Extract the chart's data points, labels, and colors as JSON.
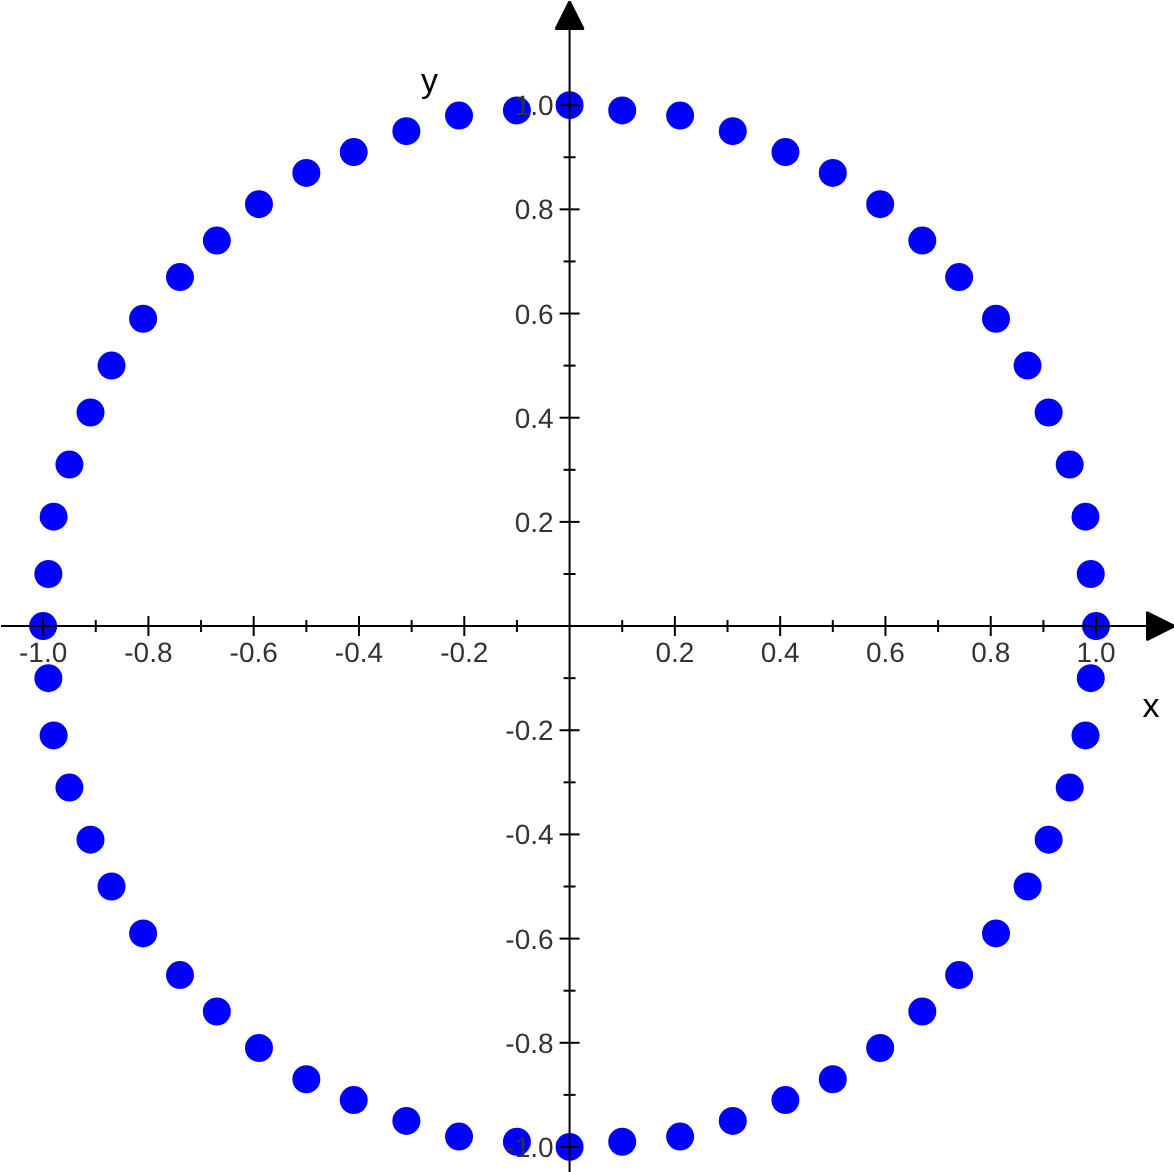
{
  "chart_data": {
    "type": "scatter",
    "xlabel": "x",
    "ylabel": "y",
    "marker": "circle",
    "grid": false,
    "xlim": [
      -1.08,
      1.15
    ],
    "ylim": [
      -1.05,
      1.2
    ],
    "xticks": [
      {
        "value": -1.0,
        "label": "-1.0"
      },
      {
        "value": -0.9,
        "label": null
      },
      {
        "value": -0.8,
        "label": "-0.8"
      },
      {
        "value": -0.7,
        "label": null
      },
      {
        "value": -0.6,
        "label": "-0.6"
      },
      {
        "value": -0.5,
        "label": null
      },
      {
        "value": -0.4,
        "label": "-0.4"
      },
      {
        "value": -0.3,
        "label": null
      },
      {
        "value": -0.2,
        "label": "-0.2"
      },
      {
        "value": -0.1,
        "label": null
      },
      {
        "value": 0.1,
        "label": null
      },
      {
        "value": 0.2,
        "label": "0.2"
      },
      {
        "value": 0.3,
        "label": null
      },
      {
        "value": 0.4,
        "label": "0.4"
      },
      {
        "value": 0.5,
        "label": null
      },
      {
        "value": 0.6,
        "label": "0.6"
      },
      {
        "value": 0.7,
        "label": null
      },
      {
        "value": 0.8,
        "label": "0.8"
      },
      {
        "value": 0.9,
        "label": null
      },
      {
        "value": 1.0,
        "label": "1.0"
      }
    ],
    "yticks": [
      {
        "value": -1.0,
        "label": "-1.0"
      },
      {
        "value": -0.9,
        "label": null
      },
      {
        "value": -0.8,
        "label": "-0.8"
      },
      {
        "value": -0.7,
        "label": null
      },
      {
        "value": -0.6,
        "label": "-0.6"
      },
      {
        "value": -0.5,
        "label": null
      },
      {
        "value": -0.4,
        "label": "-0.4"
      },
      {
        "value": -0.3,
        "label": null
      },
      {
        "value": -0.2,
        "label": "-0.2"
      },
      {
        "value": -0.1,
        "label": null
      },
      {
        "value": 0.1,
        "label": null
      },
      {
        "value": 0.2,
        "label": "0.2"
      },
      {
        "value": 0.3,
        "label": null
      },
      {
        "value": 0.4,
        "label": "0.4"
      },
      {
        "value": 0.5,
        "label": null
      },
      {
        "value": 0.6,
        "label": "0.6"
      },
      {
        "value": 0.7,
        "label": null
      },
      {
        "value": 0.8,
        "label": "0.8"
      },
      {
        "value": 0.9,
        "label": null
      },
      {
        "value": 1.0,
        "label": "1.0"
      }
    ],
    "series": [
      {
        "color": "#0000ff",
        "x": [
          1.0,
          0.99,
          0.98,
          0.95,
          0.91,
          0.87,
          0.81,
          0.74,
          0.67,
          0.59,
          0.5,
          0.41,
          0.31,
          0.21,
          0.1,
          0.0,
          -0.1,
          -0.21,
          -0.31,
          -0.41,
          -0.5,
          -0.59,
          -0.67,
          -0.74,
          -0.81,
          -0.87,
          -0.91,
          -0.95,
          -0.98,
          -0.99,
          -1.0,
          -0.99,
          -0.98,
          -0.95,
          -0.91,
          -0.87,
          -0.81,
          -0.74,
          -0.67,
          -0.59,
          -0.5,
          -0.41,
          -0.31,
          -0.21,
          -0.1,
          0.0,
          0.1,
          0.21,
          0.31,
          0.41,
          0.5,
          0.59,
          0.67,
          0.74,
          0.81,
          0.87,
          0.91,
          0.95,
          0.98,
          0.99
        ],
        "values": [
          0.0,
          0.1,
          0.21,
          0.31,
          0.41,
          0.5,
          0.59,
          0.67,
          0.74,
          0.81,
          0.87,
          0.91,
          0.95,
          0.98,
          0.99,
          1.0,
          0.99,
          0.98,
          0.95,
          0.91,
          0.87,
          0.81,
          0.74,
          0.67,
          0.59,
          0.5,
          0.41,
          0.31,
          0.21,
          0.1,
          0.0,
          -0.1,
          -0.21,
          -0.31,
          -0.41,
          -0.5,
          -0.59,
          -0.67,
          -0.74,
          -0.81,
          -0.87,
          -0.91,
          -0.95,
          -0.98,
          -0.99,
          -1.0,
          -0.99,
          -0.98,
          -0.95,
          -0.91,
          -0.87,
          -0.81,
          -0.74,
          -0.67,
          -0.59,
          -0.5,
          -0.41,
          -0.31,
          -0.21,
          -0.1
        ]
      }
    ]
  }
}
